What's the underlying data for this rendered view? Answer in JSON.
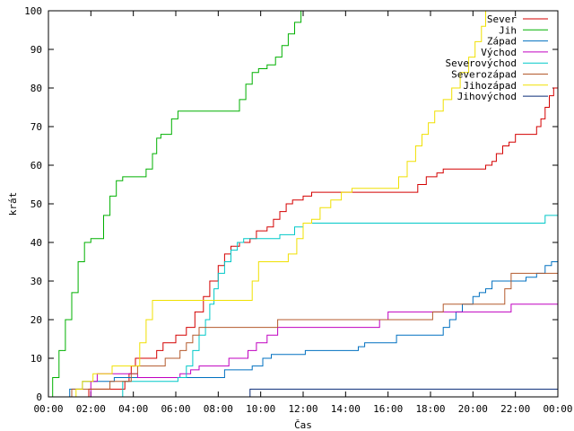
{
  "chart_data": {
    "type": "line",
    "step": true,
    "xlabel": "Čas",
    "ylabel": "krát",
    "xlim": [
      0,
      24
    ],
    "ylim": [
      0,
      100
    ],
    "x_ticks": [
      0,
      2,
      4,
      6,
      8,
      10,
      12,
      14,
      16,
      18,
      20,
      22,
      24
    ],
    "x_tick_labels": [
      "00:00",
      "02:00",
      "04:00",
      "06:00",
      "08:00",
      "10:00",
      "12:00",
      "14:00",
      "16:00",
      "18:00",
      "20:00",
      "22:00",
      "00:00"
    ],
    "y_ticks": [
      0,
      10,
      20,
      30,
      40,
      50,
      60,
      70,
      80,
      90,
      100
    ],
    "legend_position": "top-right",
    "series": [
      {
        "name": "Sever",
        "color": "#d40000",
        "points": [
          [
            1.7,
            0
          ],
          [
            1.9,
            2
          ],
          [
            3.3,
            2
          ],
          [
            3.6,
            4
          ],
          [
            3.8,
            6
          ],
          [
            3.9,
            8
          ],
          [
            4.1,
            10
          ],
          [
            5.0,
            10
          ],
          [
            5.1,
            12
          ],
          [
            5.4,
            14
          ],
          [
            6.0,
            16
          ],
          [
            6.5,
            18
          ],
          [
            6.9,
            22
          ],
          [
            7.3,
            26
          ],
          [
            7.6,
            30
          ],
          [
            8.0,
            34
          ],
          [
            8.3,
            37
          ],
          [
            8.6,
            39
          ],
          [
            9.0,
            40
          ],
          [
            9.5,
            41
          ],
          [
            9.8,
            43
          ],
          [
            10.3,
            44
          ],
          [
            10.6,
            46
          ],
          [
            10.9,
            48
          ],
          [
            11.2,
            50
          ],
          [
            11.5,
            51
          ],
          [
            12.0,
            52
          ],
          [
            12.4,
            53
          ],
          [
            17.2,
            53
          ],
          [
            17.4,
            55
          ],
          [
            17.8,
            57
          ],
          [
            18.3,
            58
          ],
          [
            18.6,
            59
          ],
          [
            20.2,
            59
          ],
          [
            20.6,
            60
          ],
          [
            20.9,
            61
          ],
          [
            21.1,
            63
          ],
          [
            21.4,
            65
          ],
          [
            21.7,
            66
          ],
          [
            22.0,
            68
          ],
          [
            22.8,
            68
          ],
          [
            23.0,
            70
          ],
          [
            23.2,
            72
          ],
          [
            23.4,
            75
          ],
          [
            23.6,
            78
          ],
          [
            23.8,
            80
          ],
          [
            24,
            80
          ]
        ]
      },
      {
        "name": "Jih",
        "color": "#00b000",
        "points": [
          [
            0,
            0
          ],
          [
            0.2,
            5
          ],
          [
            0.5,
            12
          ],
          [
            0.8,
            20
          ],
          [
            1.1,
            27
          ],
          [
            1.4,
            35
          ],
          [
            1.7,
            40
          ],
          [
            2.0,
            41
          ],
          [
            2.3,
            41
          ],
          [
            2.6,
            47
          ],
          [
            2.9,
            52
          ],
          [
            3.2,
            56
          ],
          [
            3.5,
            57
          ],
          [
            4.2,
            57
          ],
          [
            4.6,
            59
          ],
          [
            4.9,
            63
          ],
          [
            5.1,
            67
          ],
          [
            5.3,
            68
          ],
          [
            5.6,
            68
          ],
          [
            5.8,
            72
          ],
          [
            6.1,
            74
          ],
          [
            8.8,
            74
          ],
          [
            9.0,
            77
          ],
          [
            9.3,
            81
          ],
          [
            9.6,
            84
          ],
          [
            9.9,
            85
          ],
          [
            10.3,
            86
          ],
          [
            10.7,
            88
          ],
          [
            11.0,
            91
          ],
          [
            11.3,
            94
          ],
          [
            11.6,
            97
          ],
          [
            11.9,
            100
          ]
        ]
      },
      {
        "name": "Západ",
        "color": "#0070c0",
        "points": [
          [
            0.9,
            0
          ],
          [
            1.0,
            2
          ],
          [
            1.4,
            2
          ],
          [
            1.6,
            4
          ],
          [
            3.1,
            5
          ],
          [
            8.1,
            5
          ],
          [
            8.3,
            7
          ],
          [
            9.3,
            7
          ],
          [
            9.6,
            8
          ],
          [
            10.1,
            10
          ],
          [
            10.5,
            11
          ],
          [
            11.6,
            11
          ],
          [
            12.1,
            12
          ],
          [
            14.4,
            12
          ],
          [
            14.6,
            13
          ],
          [
            14.9,
            14
          ],
          [
            16.1,
            14
          ],
          [
            16.4,
            16
          ],
          [
            18.3,
            16
          ],
          [
            18.6,
            18
          ],
          [
            18.9,
            20
          ],
          [
            19.2,
            22
          ],
          [
            19.5,
            24
          ],
          [
            20.0,
            26
          ],
          [
            20.3,
            27
          ],
          [
            20.6,
            28
          ],
          [
            20.9,
            30
          ],
          [
            22.2,
            30
          ],
          [
            22.5,
            31
          ],
          [
            23.0,
            32
          ],
          [
            23.4,
            34
          ],
          [
            23.7,
            35
          ],
          [
            24,
            35
          ]
        ]
      },
      {
        "name": "Východ",
        "color": "#c000c0",
        "points": [
          [
            1.8,
            0
          ],
          [
            2.0,
            4
          ],
          [
            2.3,
            6
          ],
          [
            3.9,
            6
          ],
          [
            4.2,
            5
          ],
          [
            6.2,
            6
          ],
          [
            6.7,
            7
          ],
          [
            7.1,
            8
          ],
          [
            8.1,
            8
          ],
          [
            8.5,
            10
          ],
          [
            9.4,
            12
          ],
          [
            9.8,
            14
          ],
          [
            10.3,
            16
          ],
          [
            10.8,
            18
          ],
          [
            15.3,
            18
          ],
          [
            15.6,
            20
          ],
          [
            16.0,
            22
          ],
          [
            21.6,
            22
          ],
          [
            21.8,
            24
          ],
          [
            24,
            24
          ]
        ]
      },
      {
        "name": "Severovýchod",
        "color": "#00c8c8",
        "points": [
          [
            3.3,
            0
          ],
          [
            3.5,
            4
          ],
          [
            6.1,
            5
          ],
          [
            6.5,
            8
          ],
          [
            6.8,
            12
          ],
          [
            7.1,
            16
          ],
          [
            7.4,
            20
          ],
          [
            7.6,
            24
          ],
          [
            7.8,
            28
          ],
          [
            8.0,
            32
          ],
          [
            8.3,
            35
          ],
          [
            8.6,
            38
          ],
          [
            8.9,
            40
          ],
          [
            9.2,
            41
          ],
          [
            10.4,
            41
          ],
          [
            10.9,
            42
          ],
          [
            11.6,
            44
          ],
          [
            12.0,
            45
          ],
          [
            23.2,
            45
          ],
          [
            23.4,
            47
          ],
          [
            24,
            47
          ]
        ]
      },
      {
        "name": "Severozápad",
        "color": "#b45a2d",
        "points": [
          [
            0.9,
            0
          ],
          [
            1.1,
            2
          ],
          [
            2.6,
            2
          ],
          [
            2.9,
            4
          ],
          [
            3.6,
            4
          ],
          [
            3.9,
            6
          ],
          [
            4.2,
            8
          ],
          [
            5.2,
            8
          ],
          [
            5.5,
            10
          ],
          [
            6.2,
            12
          ],
          [
            6.5,
            14
          ],
          [
            6.8,
            16
          ],
          [
            7.1,
            18
          ],
          [
            10.6,
            18
          ],
          [
            10.8,
            20
          ],
          [
            17.9,
            20
          ],
          [
            18.1,
            22
          ],
          [
            18.6,
            24
          ],
          [
            21.3,
            24
          ],
          [
            21.5,
            28
          ],
          [
            21.8,
            32
          ],
          [
            24,
            32
          ]
        ]
      },
      {
        "name": "Jihozápad",
        "color": "#f0e000",
        "points": [
          [
            1.0,
            0
          ],
          [
            1.3,
            2
          ],
          [
            1.6,
            4
          ],
          [
            2.1,
            6
          ],
          [
            2.6,
            6
          ],
          [
            3.0,
            8
          ],
          [
            4.0,
            8
          ],
          [
            4.3,
            14
          ],
          [
            4.6,
            20
          ],
          [
            4.9,
            25
          ],
          [
            9.3,
            25
          ],
          [
            9.6,
            30
          ],
          [
            9.9,
            35
          ],
          [
            11.0,
            35
          ],
          [
            11.3,
            37
          ],
          [
            11.7,
            41
          ],
          [
            12.0,
            45
          ],
          [
            12.4,
            46
          ],
          [
            12.8,
            49
          ],
          [
            13.3,
            51
          ],
          [
            13.8,
            53
          ],
          [
            14.3,
            54
          ],
          [
            16.2,
            54
          ],
          [
            16.5,
            57
          ],
          [
            16.9,
            61
          ],
          [
            17.3,
            65
          ],
          [
            17.6,
            68
          ],
          [
            17.9,
            71
          ],
          [
            18.2,
            74
          ],
          [
            18.6,
            77
          ],
          [
            19.0,
            80
          ],
          [
            19.4,
            84
          ],
          [
            19.8,
            88
          ],
          [
            20.1,
            92
          ],
          [
            20.4,
            96
          ],
          [
            20.6,
            100
          ]
        ]
      },
      {
        "name": "Jihovýchod",
        "color": "#0a2c78",
        "points": [
          [
            9.3,
            0
          ],
          [
            9.5,
            2
          ],
          [
            24,
            2
          ]
        ]
      }
    ]
  }
}
